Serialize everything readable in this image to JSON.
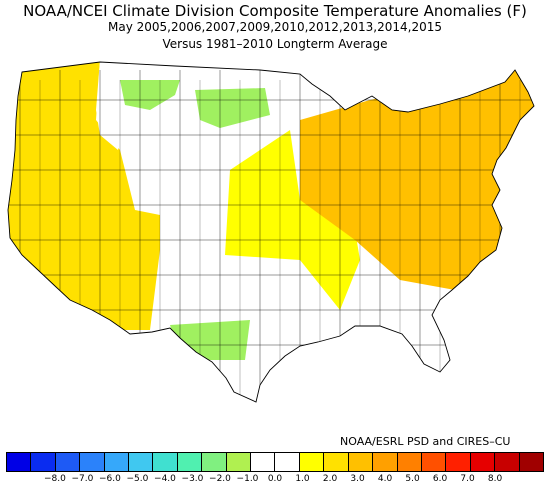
{
  "title": "NOAA/NCEI Climate Division Composite Temperature Anomalies (F)",
  "subtitle": "May  2005,2006,2007,2009,2010,2012,2013,2014,2015",
  "baseline": "Versus 1981–2010 Longterm Average",
  "credit": "NOAA/ESRL PSD and CIRES–CU",
  "legend": {
    "ticks": [
      "−8.0",
      "−7.0",
      "−6.0",
      "−5.0",
      "−4.0",
      "−3.0",
      "−2.0",
      "−1.0",
      "0.0",
      "1.0",
      "2.0",
      "3.0",
      "4.0",
      "5.0",
      "6.0",
      "7.0",
      "8.0"
    ],
    "colors": [
      "#0000e6",
      "#0a2cf0",
      "#1e5af5",
      "#2b82fa",
      "#36a8fa",
      "#40c8f0",
      "#40e0d0",
      "#50f0b0",
      "#80f080",
      "#b0f050",
      "#ffffff",
      "#ffffff",
      "#ffff00",
      "#ffe100",
      "#ffc000",
      "#ffa000",
      "#ff8000",
      "#ff5000",
      "#ff2000",
      "#e60000",
      "#c80000",
      "#a00000"
    ]
  },
  "map_colors": {
    "west_warm": "#ffe100",
    "plains_warm": "#ffff00",
    "east_warm": "#ffc000",
    "cool_north": "#a0f060",
    "cool_texas": "#a0f060",
    "neutral": "#ffffff",
    "border": "#000000"
  }
}
